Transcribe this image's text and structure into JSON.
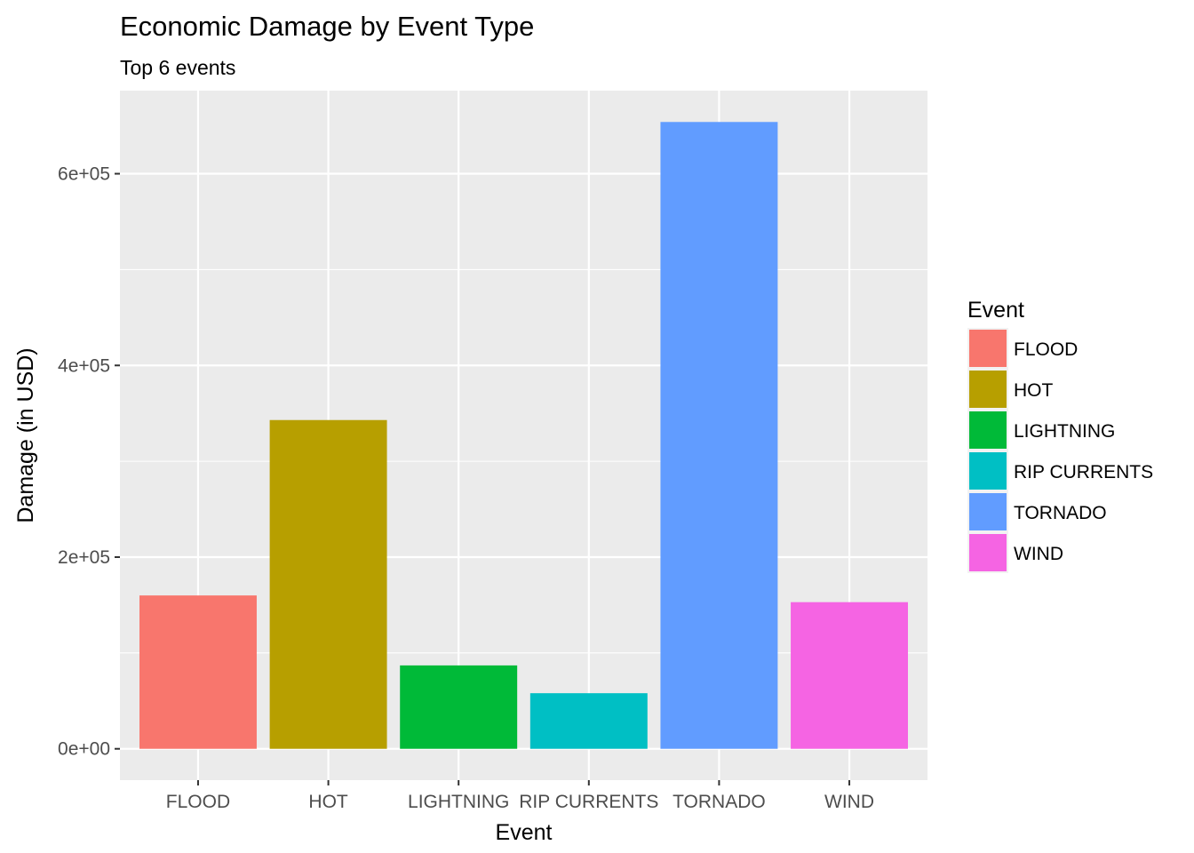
{
  "chart_data": {
    "type": "bar",
    "title": "Economic Damage by Event Type",
    "subtitle": "Top 6 events",
    "xlabel": "Event",
    "ylabel": "Damage (in USD)",
    "categories": [
      "FLOOD",
      "HOT",
      "LIGHTNING",
      "RIP CURRENTS",
      "TORNADO",
      "WIND"
    ],
    "values": [
      160000,
      343000,
      87000,
      58000,
      654000,
      153000
    ],
    "colors": [
      "#F8766D",
      "#B79F00",
      "#00BA38",
      "#00BFC4",
      "#619CFF",
      "#F564E3"
    ],
    "ylim": [
      -32700,
      686700
    ],
    "yticks": [
      0,
      200000,
      400000,
      600000
    ],
    "ytick_labels": [
      "0e+00",
      "2e+05",
      "4e+05",
      "6e+05"
    ],
    "grid": true,
    "legend": {
      "title": "Event",
      "placement": "right",
      "entries": [
        "FLOOD",
        "HOT",
        "LIGHTNING",
        "RIP CURRENTS",
        "TORNADO",
        "WIND"
      ]
    }
  }
}
